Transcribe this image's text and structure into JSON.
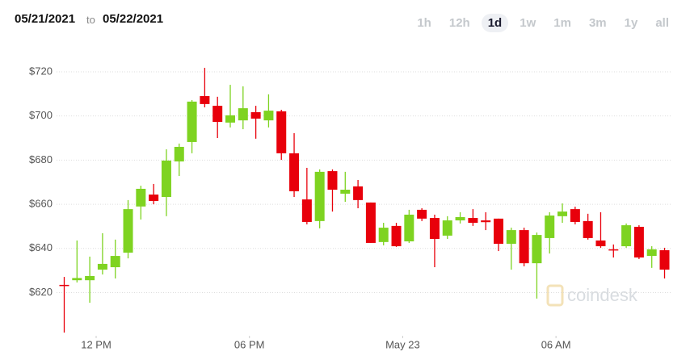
{
  "header": {
    "start_date": "05/21/2021",
    "connector": "to",
    "end_date": "05/22/2021",
    "ranges": [
      "1h",
      "12h",
      "1d",
      "1w",
      "1m",
      "3m",
      "1y",
      "all"
    ],
    "selected_range": 2
  },
  "chart_data": {
    "type": "candlestick",
    "watermark": "coindesk",
    "up_color": "#7ed321",
    "down_color": "#e8000b",
    "grid": true,
    "x": [
      0,
      1,
      2,
      3,
      4,
      5,
      6,
      7,
      8,
      9,
      10,
      11,
      12,
      13,
      14,
      15,
      16,
      17,
      18,
      19,
      20,
      21,
      22,
      23,
      24,
      25,
      26,
      27,
      28,
      29,
      30,
      31,
      32,
      33,
      34,
      35,
      36,
      37,
      38,
      39,
      40,
      41,
      42,
      43,
      44,
      45,
      46,
      47
    ],
    "xlim": [
      -0.6,
      47.6
    ],
    "xticks": [
      {
        "value": 2.5,
        "label": "12 PM"
      },
      {
        "value": 14.5,
        "label": "06 PM"
      },
      {
        "value": 26.5,
        "label": "May 23"
      },
      {
        "value": 38.5,
        "label": "06 AM"
      }
    ],
    "ylim": [
      600,
      730
    ],
    "yticks": [
      {
        "value": 620,
        "label": "$620"
      },
      {
        "value": 640,
        "label": "$640"
      },
      {
        "value": 660,
        "label": "$660"
      },
      {
        "value": 680,
        "label": "$680"
      },
      {
        "value": 700,
        "label": "$700"
      },
      {
        "value": 720,
        "label": "$720"
      }
    ],
    "open": [
      623.5,
      625.6,
      625.6,
      630.4,
      631.5,
      638.1,
      659.0,
      664.4,
      663.3,
      679.4,
      688.2,
      709.0,
      704.6,
      697.0,
      698.0,
      701.7,
      698.0,
      702.1,
      683.1,
      662.2,
      652.4,
      675.0,
      664.8,
      668.1,
      660.8,
      642.9,
      650.2,
      643.2,
      657.5,
      653.8,
      645.8,
      652.7,
      653.8,
      652.7,
      653.5,
      642.1,
      648.3,
      633.3,
      644.7,
      654.6,
      657.8,
      652.4,
      643.6,
      639.6,
      641.0,
      649.8,
      636.6,
      639.2
    ],
    "high": [
      627.1,
      643.6,
      636.3,
      646.9,
      644.0,
      661.9,
      668.4,
      669.2,
      684.9,
      687.5,
      707.2,
      721.8,
      708.7,
      714.1,
      713.4,
      704.6,
      709.8,
      702.8,
      692.2,
      676.5,
      675.8,
      675.8,
      674.7,
      671.0,
      660.8,
      651.6,
      651.6,
      657.5,
      658.2,
      655.3,
      654.6,
      656.4,
      657.8,
      656.4,
      653.5,
      649.4,
      649.4,
      647.2,
      656.4,
      660.4,
      658.9,
      655.7,
      656.4,
      641.8,
      651.3,
      650.5,
      641.0,
      640.3
    ],
    "low": [
      601.9,
      624.6,
      615.4,
      628.2,
      626.4,
      635.5,
      653.1,
      660.0,
      654.6,
      672.8,
      683.1,
      703.9,
      690.0,
      694.8,
      694.0,
      689.7,
      694.8,
      680.1,
      663.3,
      650.9,
      649.1,
      656.7,
      661.1,
      658.2,
      642.5,
      641.4,
      640.7,
      642.5,
      652.4,
      631.5,
      644.3,
      651.3,
      650.2,
      648.3,
      638.8,
      630.4,
      631.9,
      617.3,
      637.7,
      651.6,
      650.9,
      644.0,
      640.3,
      635.9,
      640.3,
      635.2,
      631.2,
      626.4
    ],
    "close": [
      623.0,
      626.6,
      627.5,
      633.0,
      636.6,
      657.8,
      667.0,
      661.5,
      679.8,
      686.0,
      706.5,
      705.4,
      697.3,
      700.3,
      703.5,
      698.8,
      702.4,
      683.1,
      665.9,
      652.0,
      674.7,
      666.6,
      666.6,
      661.9,
      642.5,
      649.4,
      641.0,
      655.3,
      653.5,
      644.3,
      652.7,
      654.2,
      651.6,
      651.9,
      642.1,
      648.3,
      633.3,
      646.1,
      654.9,
      656.7,
      652.0,
      644.7,
      641.0,
      639.2,
      650.5,
      635.9,
      639.6,
      630.4
    ]
  }
}
